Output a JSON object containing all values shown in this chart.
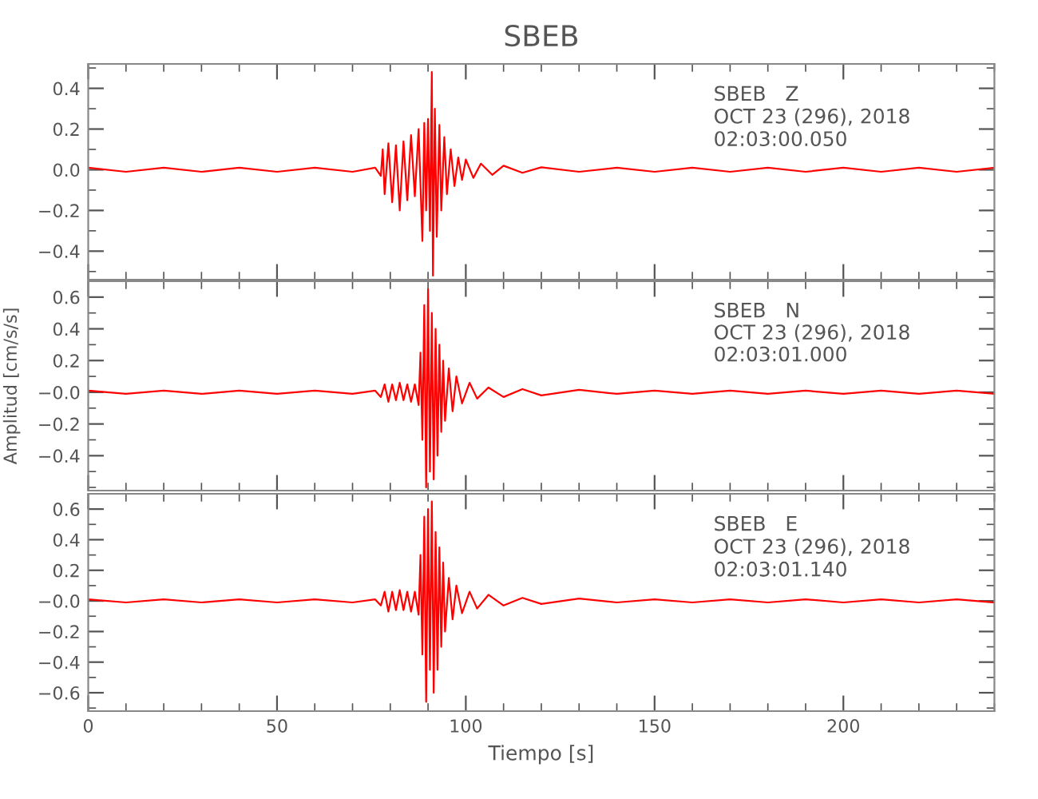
{
  "chart_data": [
    {
      "type": "line",
      "title": "SBEB",
      "annotations": [
        "SBEB   Z",
        "OCT 23 (296), 2018",
        "02:03:00.050"
      ],
      "tick_labels": "y",
      "xlim": [
        0,
        240
      ],
      "xticks": [
        0,
        50,
        100,
        150,
        200
      ],
      "ylim": [
        -0.54,
        0.52
      ],
      "yticks": [
        {
          "value": 0.4,
          "label": "0.4"
        },
        {
          "value": 0.2,
          "label": "0.2"
        },
        {
          "value": 0,
          "label": "0.0"
        },
        {
          "value": -0.2,
          "label": "−0.2"
        },
        {
          "value": -0.4,
          "label": "−0.4"
        }
      ],
      "grid": false,
      "legend": false,
      "series": [
        {
          "color": "#ff0000",
          "x": [
            0,
            10,
            20,
            30,
            40,
            50,
            60,
            70,
            76,
            77.5,
            78,
            78.5,
            79.5,
            80.5,
            81.5,
            82.5,
            83.5,
            84.5,
            85.5,
            86.5,
            87.5,
            88.5,
            89,
            89.5,
            90,
            90.5,
            91,
            91.3,
            91.8,
            92.3,
            93,
            93.5,
            94.3,
            95,
            96,
            97,
            98,
            99,
            100,
            102,
            104,
            107,
            110,
            115,
            120,
            130,
            140,
            150,
            160,
            170,
            180,
            190,
            200,
            210,
            220,
            230,
            240
          ],
          "values": [
            0.01,
            -0.01,
            0.01,
            -0.01,
            0.01,
            -0.01,
            0.01,
            -0.01,
            0.01,
            -0.03,
            0.1,
            -0.12,
            0.13,
            -0.16,
            0.12,
            -0.2,
            0.14,
            -0.15,
            0.17,
            -0.13,
            0.2,
            -0.35,
            0.23,
            -0.2,
            0.25,
            -0.3,
            0.48,
            -0.52,
            0.3,
            -0.33,
            0.22,
            -0.2,
            0.16,
            -0.12,
            0.1,
            -0.08,
            0.06,
            -0.05,
            0.05,
            -0.04,
            0.03,
            -0.025,
            0.02,
            -0.015,
            0.012,
            -0.01,
            0.01,
            -0.01,
            0.01,
            -0.01,
            0.01,
            -0.01,
            0.01,
            -0.01,
            0.01,
            -0.01,
            0.01
          ]
        }
      ]
    },
    {
      "type": "line",
      "ylabel": "Amplitud [cm/s/s]",
      "annotations": [
        "SBEB   N",
        "OCT 23 (296), 2018",
        "02:03:01.000"
      ],
      "tick_labels": "y",
      "xlim": [
        0,
        240
      ],
      "xticks": [
        0,
        50,
        100,
        150,
        200
      ],
      "ylim": [
        -0.62,
        0.7
      ],
      "yticks": [
        {
          "value": 0.6,
          "label": "0.6"
        },
        {
          "value": 0.4,
          "label": "0.4"
        },
        {
          "value": 0.2,
          "label": "0.2"
        },
        {
          "value": 0,
          "label": "−0.0"
        },
        {
          "value": -0.2,
          "label": "−0.2"
        },
        {
          "value": -0.4,
          "label": "−0.4"
        }
      ],
      "grid": false,
      "legend": false,
      "series": [
        {
          "color": "#ff0000",
          "x": [
            0,
            10,
            20,
            30,
            40,
            50,
            60,
            70,
            76,
            77.5,
            78.5,
            79.5,
            80.5,
            81.5,
            82.5,
            83.5,
            84.5,
            85.5,
            86.5,
            87.5,
            88,
            88.5,
            89,
            89.5,
            90,
            90.5,
            91,
            91.5,
            92,
            92.5,
            93,
            93.5,
            94,
            94.5,
            95.5,
            96.5,
            97.5,
            99,
            101,
            103,
            106,
            110,
            115,
            120,
            130,
            140,
            150,
            160,
            170,
            180,
            190,
            200,
            210,
            220,
            230,
            240
          ],
          "values": [
            0.01,
            -0.01,
            0.01,
            -0.01,
            0.01,
            -0.01,
            0.01,
            -0.01,
            0.01,
            -0.03,
            0.05,
            -0.06,
            0.05,
            -0.05,
            0.06,
            -0.05,
            0.05,
            -0.06,
            0.05,
            -0.08,
            0.25,
            -0.3,
            0.55,
            -0.6,
            0.65,
            -0.5,
            0.5,
            -0.55,
            0.4,
            -0.4,
            0.3,
            -0.25,
            0.2,
            -0.18,
            0.15,
            -0.12,
            0.1,
            -0.07,
            0.06,
            -0.04,
            0.03,
            -0.03,
            0.02,
            -0.02,
            0.015,
            -0.01,
            0.01,
            -0.01,
            0.01,
            -0.01,
            0.01,
            -0.01,
            0.01,
            -0.01,
            0.01,
            -0.01
          ]
        }
      ]
    },
    {
      "type": "line",
      "xlabel": "Tiempo [s]",
      "annotations": [
        "SBEB   E",
        "OCT 23 (296), 2018",
        "02:03:01.140"
      ],
      "xlim": [
        0,
        240
      ],
      "xticks": [
        0,
        50,
        100,
        150,
        200
      ],
      "ylim": [
        -0.72,
        0.7
      ],
      "yticks": [
        {
          "value": 0.6,
          "label": "0.6"
        },
        {
          "value": 0.4,
          "label": "0.4"
        },
        {
          "value": 0.2,
          "label": "0.2"
        },
        {
          "value": 0,
          "label": "−0.0"
        },
        {
          "value": -0.2,
          "label": "−0.2"
        },
        {
          "value": -0.4,
          "label": "−0.4"
        },
        {
          "value": -0.6,
          "label": "−0.6"
        }
      ],
      "grid": false,
      "legend": false,
      "series": [
        {
          "color": "#ff0000",
          "x": [
            0,
            10,
            20,
            30,
            40,
            50,
            60,
            70,
            76,
            77.5,
            78.5,
            79.5,
            80.5,
            81.5,
            82.5,
            83.5,
            84.5,
            85.5,
            86.5,
            87.5,
            88,
            88.5,
            89,
            89.5,
            90,
            90.5,
            91,
            91.5,
            92,
            92.5,
            93,
            93.5,
            94,
            94.5,
            95.5,
            96.5,
            97.5,
            99,
            101,
            103,
            106,
            110,
            115,
            120,
            130,
            140,
            150,
            160,
            170,
            180,
            190,
            200,
            210,
            220,
            230,
            240
          ],
          "values": [
            0.01,
            -0.01,
            0.01,
            -0.01,
            0.01,
            -0.01,
            0.01,
            -0.01,
            0.01,
            -0.03,
            0.06,
            -0.07,
            0.06,
            -0.06,
            0.07,
            -0.06,
            0.06,
            -0.07,
            0.06,
            -0.09,
            0.3,
            -0.35,
            0.55,
            -0.66,
            0.6,
            -0.45,
            0.65,
            -0.6,
            0.45,
            -0.45,
            0.35,
            -0.3,
            0.25,
            -0.2,
            0.15,
            -0.12,
            0.1,
            -0.08,
            0.06,
            -0.05,
            0.04,
            -0.03,
            0.02,
            -0.02,
            0.015,
            -0.01,
            0.01,
            -0.01,
            0.01,
            -0.01,
            0.01,
            -0.01,
            0.01,
            -0.01,
            0.01,
            -0.01
          ]
        }
      ]
    }
  ]
}
